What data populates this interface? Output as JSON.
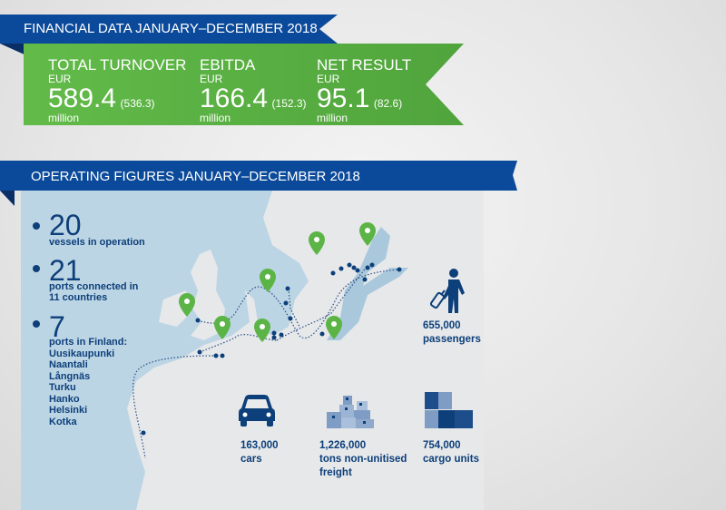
{
  "financial": {
    "title": "FINANCIAL DATA JANUARY–DECEMBER 2018",
    "items": [
      {
        "label": "TOTAL TURNOVER",
        "unit": "EUR",
        "value": "589.4",
        "previous": "(536.3)",
        "scale": "million"
      },
      {
        "label": "EBITDA",
        "unit": "EUR",
        "value": "166.4",
        "previous": "(152.3)",
        "scale": "million"
      },
      {
        "label": "NET RESULT",
        "unit": "EUR",
        "value": "95.1",
        "previous": "(82.6)",
        "scale": "million"
      }
    ]
  },
  "operating": {
    "title": "OPERATING FIGURES JANUARY–DECEMBER 2018",
    "vessels": {
      "value": "20",
      "label": "vessels in operation"
    },
    "ports": {
      "value": "21",
      "label1": "ports connected in",
      "label2": "11 countries"
    },
    "finland": {
      "value": "7",
      "label": "ports in Finland:",
      "ports": [
        "Uusikaupunki",
        "Naantali",
        "Långnäs",
        "Turku",
        "Hanko",
        "Helsinki",
        "Kotka"
      ]
    },
    "passengers": {
      "value": "655,000",
      "label": "passengers",
      "icon": "traveler-icon"
    },
    "cars": {
      "value": "163,000",
      "label": "cars",
      "icon": "car-icon"
    },
    "freight": {
      "value": "1,226,000",
      "label1": "tons non-unitised",
      "label2": "freight",
      "icon": "boxes-icon"
    },
    "cargo": {
      "value": "754,000",
      "label": "cargo units",
      "icon": "containers-icon"
    }
  },
  "colors": {
    "blue": "#0b4a9a",
    "green": "#5cb446",
    "navy": "#0d3f7a",
    "sea": "#bcd5e4",
    "land": "#e6e8ea"
  }
}
